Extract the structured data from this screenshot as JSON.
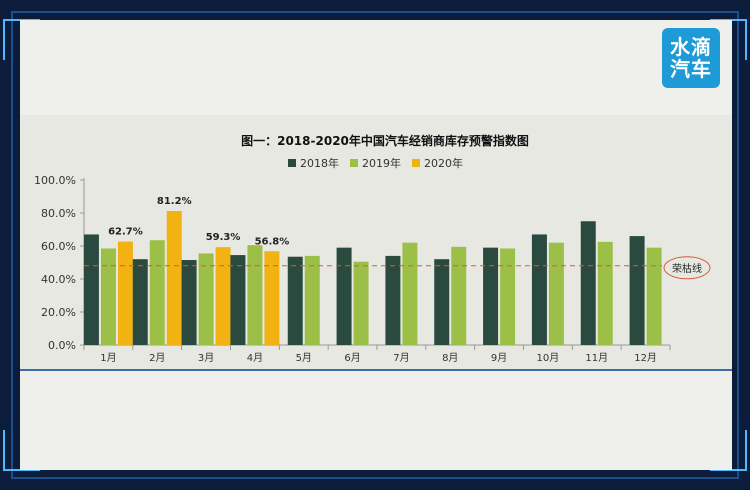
{
  "logo": {
    "text": "水滴汽车"
  },
  "colors": {
    "frame": "#0b1d3a",
    "panel": "#efefeb",
    "accent_line": "#4fb8ff",
    "ref_line": "#d65a3a"
  },
  "chart_data": {
    "type": "bar",
    "title": "图一：2018-2020年中国汽车经销商库存预警指数图",
    "categories": [
      "1月",
      "2月",
      "3月",
      "4月",
      "5月",
      "6月",
      "7月",
      "8月",
      "9月",
      "10月",
      "11月",
      "12月"
    ],
    "series": [
      {
        "name": "2018年",
        "color": "#2a4a3f",
        "values": [
          67.0,
          52.0,
          51.5,
          54.5,
          53.5,
          59.0,
          54.0,
          52.0,
          59.0,
          67.0,
          75.0,
          66.0
        ]
      },
      {
        "name": "2019年",
        "color": "#9cc047",
        "values": [
          58.5,
          63.5,
          55.5,
          60.5,
          54.0,
          50.5,
          62.0,
          59.5,
          58.5,
          62.0,
          62.5,
          59.0
        ]
      },
      {
        "name": "2020年",
        "color": "#f2b212",
        "values": [
          62.7,
          81.2,
          59.3,
          56.8,
          null,
          null,
          null,
          null,
          null,
          null,
          null,
          null
        ]
      }
    ],
    "data_labels": [
      "62.7%",
      "81.2%",
      "59.3%",
      "56.8%"
    ],
    "yticks": [
      "0.0%",
      "20.0%",
      "40.0%",
      "60.0%",
      "80.0%",
      "100.0%"
    ],
    "ylim": [
      0,
      100
    ],
    "reference_line": {
      "value": 48,
      "label": "荣枯线"
    },
    "legend_position": "top-center",
    "grid": false
  }
}
